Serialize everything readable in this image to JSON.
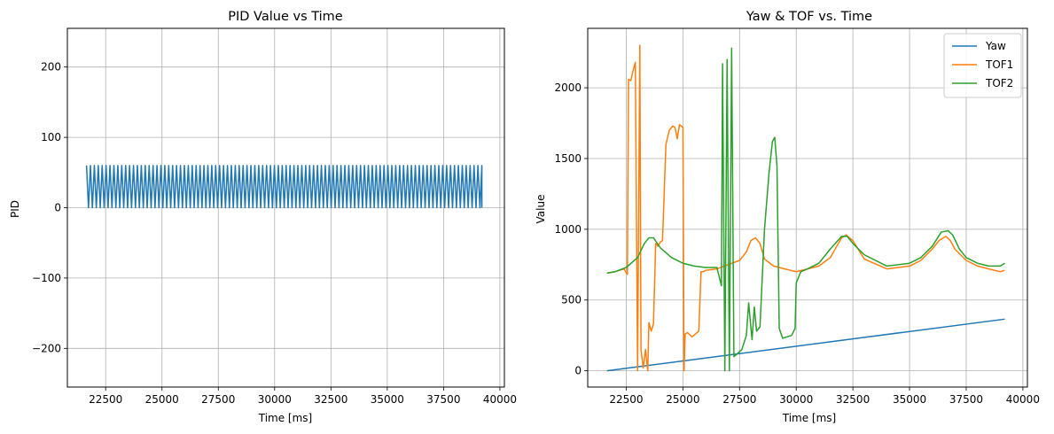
{
  "chart_data": [
    {
      "type": "line",
      "title": "PID Value vs Time",
      "xlabel": "Time [ms]",
      "ylabel": "PID",
      "xlim": [
        20800,
        40200
      ],
      "ylim": [
        -255,
        255
      ],
      "xticks": [
        22500,
        25000,
        27500,
        30000,
        32500,
        35000,
        37500,
        40000
      ],
      "xtick_labels": [
        "22500",
        "25000",
        "27500",
        "30000",
        "32500",
        "35000",
        "37500",
        "40000"
      ],
      "yticks": [
        -200,
        -100,
        0,
        100,
        200
      ],
      "ytick_labels": [
        "−200",
        "−100",
        "0",
        "100",
        "200"
      ],
      "grid": true,
      "series": [
        {
          "color": "#1f77b4",
          "pattern": "sawtooth",
          "x_start": 21650,
          "x_end": 39200,
          "high": 60,
          "low": 0,
          "cycles": 101
        }
      ]
    },
    {
      "type": "line",
      "title": "Yaw & TOF vs. Time",
      "xlabel": "Time [ms]",
      "ylabel": "Value",
      "xlim": [
        20800,
        40200
      ],
      "ylim": [
        -115,
        2420
      ],
      "xticks": [
        22500,
        25000,
        27500,
        30000,
        32500,
        35000,
        37500,
        40000
      ],
      "xtick_labels": [
        "22500",
        "25000",
        "27500",
        "30000",
        "32500",
        "35000",
        "37500",
        "40000"
      ],
      "yticks": [
        0,
        500,
        1000,
        1500,
        2000
      ],
      "ytick_labels": [
        "0",
        "500",
        "1000",
        "1500",
        "2000"
      ],
      "grid": true,
      "legend_position": "top-right",
      "series": [
        {
          "name": "Yaw",
          "color": "#1f77b4",
          "x": [
            21650,
            39200
          ],
          "y": [
            0,
            365
          ]
        },
        {
          "name": "TOF1",
          "color": "#ff7f0e",
          "x": [
            21650,
            22000,
            22400,
            22550,
            22600,
            22700,
            22800,
            22900,
            23000,
            23100,
            23150,
            23250,
            23350,
            23450,
            23500,
            23600,
            23700,
            23800,
            23900,
            24000,
            24100,
            24250,
            24400,
            24550,
            24650,
            24750,
            24850,
            25000,
            25050,
            25100,
            25200,
            25400,
            25700,
            25800,
            25900,
            26000,
            26500,
            27000,
            27500,
            27800,
            28000,
            28200,
            28400,
            28600,
            29000,
            29500,
            30000,
            30500,
            31000,
            31500,
            32000,
            32200,
            32500,
            33000,
            34000,
            35000,
            35500,
            36000,
            36300,
            36600,
            36800,
            37000,
            37500,
            38000,
            38500,
            39000,
            39200
          ],
          "y": [
            690,
            700,
            720,
            680,
            2060,
            2050,
            2120,
            2180,
            0,
            2300,
            150,
            20,
            150,
            0,
            340,
            280,
            330,
            900,
            880,
            910,
            920,
            1600,
            1700,
            1730,
            1720,
            1640,
            1740,
            1720,
            0,
            260,
            270,
            240,
            280,
            700,
            700,
            710,
            720,
            750,
            780,
            840,
            920,
            940,
            900,
            790,
            740,
            720,
            700,
            720,
            740,
            800,
            940,
            960,
            920,
            790,
            720,
            740,
            780,
            860,
            920,
            950,
            920,
            860,
            780,
            740,
            720,
            700,
            710
          ]
        },
        {
          "name": "TOF2",
          "color": "#2ca02c",
          "x": [
            21650,
            22000,
            22500,
            23000,
            23300,
            23500,
            23700,
            24000,
            24500,
            25000,
            25500,
            26000,
            26500,
            26700,
            26750,
            26850,
            26950,
            27050,
            27150,
            27250,
            27400,
            27600,
            27800,
            27900,
            28050,
            28150,
            28250,
            28400,
            28600,
            28800,
            28950,
            29050,
            29150,
            29250,
            29400,
            29600,
            29800,
            29950,
            30000,
            30200,
            30500,
            31000,
            31500,
            32000,
            32250,
            32500,
            33000,
            34000,
            35000,
            35500,
            36000,
            36400,
            36700,
            36900,
            37200,
            37500,
            38000,
            38500,
            39000,
            39200
          ],
          "y": [
            690,
            700,
            730,
            800,
            900,
            940,
            940,
            870,
            800,
            760,
            740,
            730,
            730,
            600,
            2170,
            0,
            2200,
            0,
            2280,
            100,
            120,
            150,
            250,
            480,
            220,
            450,
            280,
            310,
            1000,
            1400,
            1620,
            1650,
            1450,
            300,
            230,
            240,
            250,
            300,
            620,
            700,
            720,
            760,
            860,
            950,
            950,
            900,
            820,
            740,
            760,
            800,
            880,
            980,
            990,
            960,
            860,
            800,
            760,
            740,
            740,
            760
          ]
        }
      ]
    }
  ]
}
